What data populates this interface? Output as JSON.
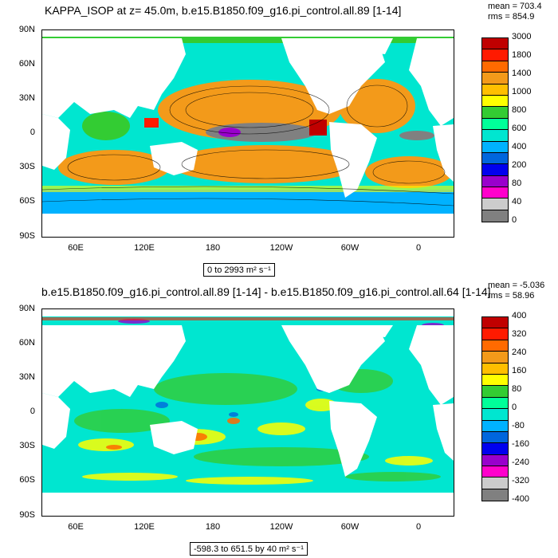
{
  "top": {
    "title": "KAPPA_ISOP at z=  45.0m, b.e15.B1850.f09_g16.pi_control.all.89 [1-14]",
    "mean": "mean = 703.4",
    "rms": "rms = 854.9",
    "range": "0 to 2993 m² s⁻¹",
    "legend_labels": [
      "3000",
      "1800",
      "1400",
      "1000",
      "800",
      "600",
      "400",
      "200",
      "80",
      "40",
      "0"
    ],
    "legend_colors": [
      "#c00000",
      "#ff1a00",
      "#ff6a00",
      "#f39a1a",
      "#ffbf00",
      "#ffff00",
      "#33cc33",
      "#00ff99",
      "#00e6d0",
      "#00b2ff",
      "#0066dd",
      "#0000ee",
      "#9900cc",
      "#ff00cc",
      "#cccccc",
      "#808080"
    ]
  },
  "bottom": {
    "title": "b.e15.B1850.f09_g16.pi_control.all.89 [1-14] - b.e15.B1850.f09_g16.pi_control.all.64 [1-14]",
    "mean": "mean = -5.036",
    "rms": "rms = 58.96",
    "range": "-598.3 to 651.5 by 40 m² s⁻¹",
    "legend_labels": [
      "400",
      "320",
      "240",
      "160",
      "80",
      "0",
      "-80",
      "-160",
      "-240",
      "-320",
      "-400"
    ],
    "legend_colors": [
      "#c00000",
      "#ff1a00",
      "#ff6a00",
      "#f39a1a",
      "#ffbf00",
      "#ffff00",
      "#33cc33",
      "#00ff99",
      "#00e6d0",
      "#00b2ff",
      "#0066dd",
      "#0000ee",
      "#9900cc",
      "#ff00cc",
      "#cccccc",
      "#808080"
    ]
  },
  "axes": {
    "lat_labels": [
      "90N",
      "60N",
      "30N",
      "0",
      "30S",
      "60S",
      "90S"
    ],
    "lon_labels": [
      "60E",
      "120E",
      "180",
      "120W",
      "60W",
      "0"
    ]
  },
  "contour_labels": [
    "800",
    "1000",
    "1400",
    "1400",
    "600",
    "1000",
    "200",
    "400",
    "1000",
    "600",
    "800",
    "400",
    "400",
    "400",
    "800",
    "600",
    "200",
    "1000",
    "800",
    "1000",
    "600",
    "400",
    "400",
    "600",
    "800"
  ]
}
